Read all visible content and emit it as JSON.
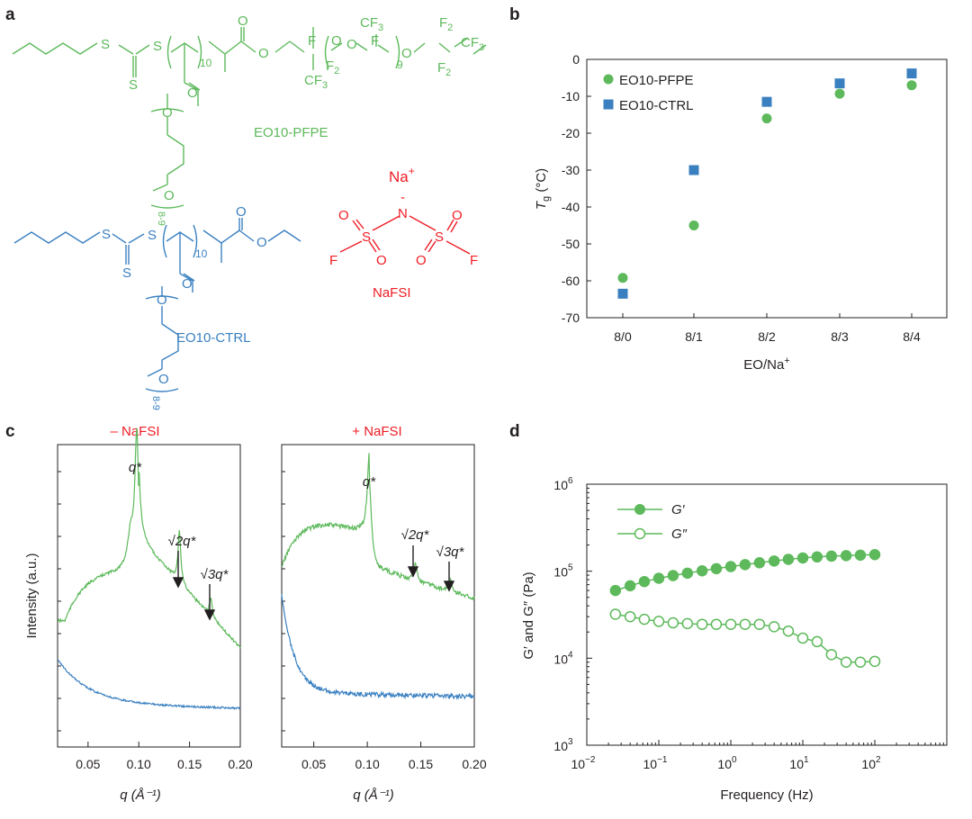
{
  "colors": {
    "green": "#5DB95B",
    "blue": "#3A80C1",
    "red": "#EE1C25",
    "black": "#231F20"
  },
  "panel_labels": [
    "a",
    "b",
    "c",
    "d"
  ],
  "panel_a": {
    "pfpe_name": "EO10-PFPE",
    "ctrl_name": "EO10-CTRL",
    "salt_name": "NaFSI",
    "na_ion": "Na",
    "na_charge": "+",
    "n_minus": "-",
    "atoms": {
      "S": "S",
      "O": "O",
      "F": "F",
      "N": "N",
      "CF3": "CF",
      "three": "3",
      "F2": "F",
      "two": "2"
    },
    "sub_10": "10",
    "sub_9": "9",
    "sub_8_9": "8-9"
  },
  "chart_data": [
    {
      "panel": "b",
      "type": "scatter",
      "categories": [
        "8/0",
        "8/1",
        "8/2",
        "8/3",
        "8/4"
      ],
      "series": [
        {
          "name": "EO10-PFPE",
          "marker": "circle",
          "color": "#5DB95B",
          "values": [
            -59.2,
            -45.0,
            -16.0,
            -9.3,
            -7.0
          ]
        },
        {
          "name": "EO10-CTRL",
          "marker": "square",
          "color": "#3A80C1",
          "values": [
            -63.5,
            -30.0,
            -11.5,
            -6.5,
            -3.8
          ]
        }
      ],
      "ylim": [
        -70,
        0
      ],
      "yticks": [
        "0",
        "-10",
        "-20",
        "-30",
        "-40",
        "-50",
        "-60",
        "-70"
      ],
      "ylabel_main": "T",
      "ylabel_sub": "g",
      "ylabel_unit": " (°C)",
      "xlabel_main": "EO/Na",
      "xlabel_sup": "+",
      "legend": "top-left"
    },
    {
      "panel": "c-left",
      "type": "line",
      "title": "– NaFSI",
      "x_range": [
        0.02,
        0.2
      ],
      "xticks": [
        "0.05",
        "0.10",
        "0.15",
        "0.20"
      ],
      "xlabel": "q (Å⁻¹)",
      "ylabel": "Intensity (a.u.)",
      "y_scale": "log (arbitrary units)",
      "series": [
        {
          "name": "EO10-PFPE",
          "color": "#5DB95B",
          "peaks": [
            0.098,
            0.14,
            0.171
          ]
        },
        {
          "name": "EO10-CTRL",
          "color": "#3A80C1",
          "peaks": []
        }
      ],
      "annotations": [
        "q*",
        "√2q*",
        "√3q*"
      ]
    },
    {
      "panel": "c-right",
      "type": "line",
      "title": "+ NaFSI",
      "x_range": [
        0.02,
        0.2
      ],
      "xticks": [
        "0.05",
        "0.10",
        "0.15",
        "0.20"
      ],
      "xlabel": "q (Å⁻¹)",
      "y_scale": "log (arbitrary units)",
      "series": [
        {
          "name": "EO10-PFPE",
          "color": "#5DB95B",
          "peaks": [
            0.102,
            0.145,
            0.178
          ]
        },
        {
          "name": "EO10-CTRL",
          "color": "#3A80C1",
          "peaks": []
        }
      ],
      "annotations": [
        "q*",
        "√2q*",
        "√3q*"
      ]
    },
    {
      "panel": "d",
      "type": "line",
      "xscale": "log",
      "yscale": "log",
      "x": [
        0.025,
        0.04,
        0.063,
        0.1,
        0.158,
        0.25,
        0.4,
        0.63,
        1.0,
        1.58,
        2.5,
        4.0,
        6.3,
        10,
        15.8,
        25,
        40,
        63,
        100
      ],
      "series": [
        {
          "name": "G′",
          "filled": true,
          "values": [
            60000,
            68000,
            76000,
            83000,
            89000,
            95000,
            101000,
            107000,
            113000,
            119000,
            125000,
            131000,
            137000,
            142000,
            146000,
            149000,
            151000,
            153000,
            155000
          ]
        },
        {
          "name": "G″",
          "filled": false,
          "values": [
            32000,
            30000,
            28000,
            26500,
            25500,
            25000,
            24500,
            24500,
            24500,
            24500,
            24500,
            23000,
            20500,
            17000,
            15500,
            11000,
            9000,
            9000,
            9200
          ]
        }
      ],
      "xlim": [
        0.01,
        1000
      ],
      "ylim": [
        1000,
        1000000
      ],
      "xticks": [
        {
          "base": "10",
          "exp": "−2"
        },
        {
          "base": "10",
          "exp": "−1"
        },
        {
          "base": "10",
          "exp": "0"
        },
        {
          "base": "10",
          "exp": "1"
        },
        {
          "base": "10",
          "exp": "2"
        }
      ],
      "yticks": [
        {
          "base": "10",
          "exp": "3"
        },
        {
          "base": "10",
          "exp": "4"
        },
        {
          "base": "10",
          "exp": "5"
        },
        {
          "base": "10",
          "exp": "6"
        }
      ],
      "xlabel": "Frequency (Hz)",
      "ylabel": "G′ and G″ (Pa)",
      "legend": "top-left"
    }
  ]
}
